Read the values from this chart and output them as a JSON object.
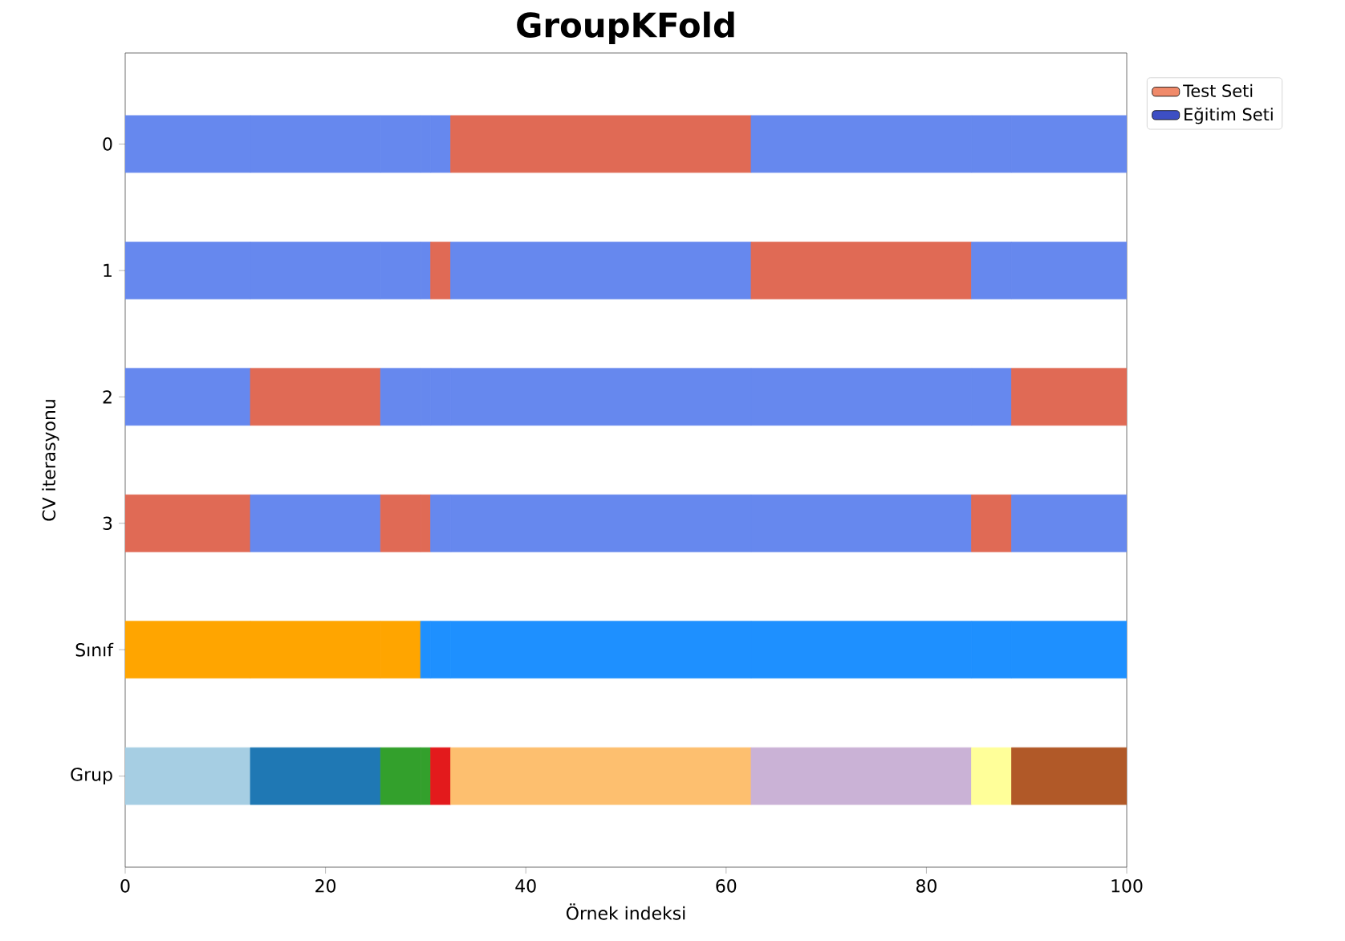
{
  "chart_data": {
    "type": "bar",
    "orientation": "horizontal",
    "stacked": true,
    "title": "GroupKFold",
    "xlabel": "Örnek indeksi",
    "ylabel": "CV iterasyonu",
    "categories": [
      "0",
      "1",
      "2",
      "3",
      "Sınıf",
      "Grup"
    ],
    "xlim": [
      0,
      100
    ],
    "xticks": [
      0,
      20,
      40,
      60,
      80,
      100
    ],
    "legend": "top right",
    "series": [
      {
        "values": [
          12.5,
          12.5,
          12.5,
          12.5,
          12.5,
          12.5
        ],
        "colors": [
          "#6688ee",
          "#6688ee",
          "#6688ee",
          "#e06a55",
          "#ffa500",
          "#a6cee3"
        ]
      },
      {
        "values": [
          13,
          13,
          13,
          13,
          13,
          13
        ],
        "colors": [
          "#6688ee",
          "#6688ee",
          "#e06a55",
          "#6688ee",
          "#ffa500",
          "#1f78b4"
        ]
      },
      {
        "values": [
          4,
          4,
          4,
          4,
          4,
          4
        ],
        "colors": [
          "#6688ee",
          "#6688ee",
          "#6688ee",
          "#e06a55",
          "#ffa500",
          "#33a02c"
        ]
      },
      {
        "values": [
          1,
          1,
          1,
          1,
          1,
          1
        ],
        "colors": [
          "#6688ee",
          "#6688ee",
          "#6688ee",
          "#e06a55",
          "#1e90ff",
          "#33a02c"
        ]
      },
      {
        "values": [
          2,
          2,
          2,
          2,
          2,
          2
        ],
        "colors": [
          "#6688ee",
          "#e06a55",
          "#6688ee",
          "#6688ee",
          "#1e90ff",
          "#e31a1c"
        ]
      },
      {
        "values": [
          30,
          30,
          30,
          30,
          30,
          30
        ],
        "colors": [
          "#e06a55",
          "#6688ee",
          "#6688ee",
          "#6688ee",
          "#1e90ff",
          "#fdbf6f"
        ]
      },
      {
        "values": [
          22,
          22,
          22,
          22,
          22,
          22
        ],
        "colors": [
          "#6688ee",
          "#e06a55",
          "#6688ee",
          "#6688ee",
          "#1e90ff",
          "#cab2d6"
        ]
      },
      {
        "values": [
          4,
          4,
          4,
          4,
          4,
          4
        ],
        "colors": [
          "#6688ee",
          "#6688ee",
          "#6688ee",
          "#e06a55",
          "#1e90ff",
          "#ffff99"
        ]
      },
      {
        "values": [
          11.5,
          11.5,
          11.5,
          11.5,
          11.5,
          11.5
        ],
        "colors": [
          "#6688ee",
          "#6688ee",
          "#e06a55",
          "#6688ee",
          "#1e90ff",
          "#b15928"
        ]
      },
      {
        "name": "Test Seti",
        "color": "#f08a6a",
        "values": [
          null,
          null,
          null,
          null,
          null,
          null
        ]
      },
      {
        "name": "Eğitim Seti",
        "color": "#3d4fc4",
        "values": [
          null,
          null,
          null,
          null,
          null,
          null
        ]
      }
    ]
  }
}
